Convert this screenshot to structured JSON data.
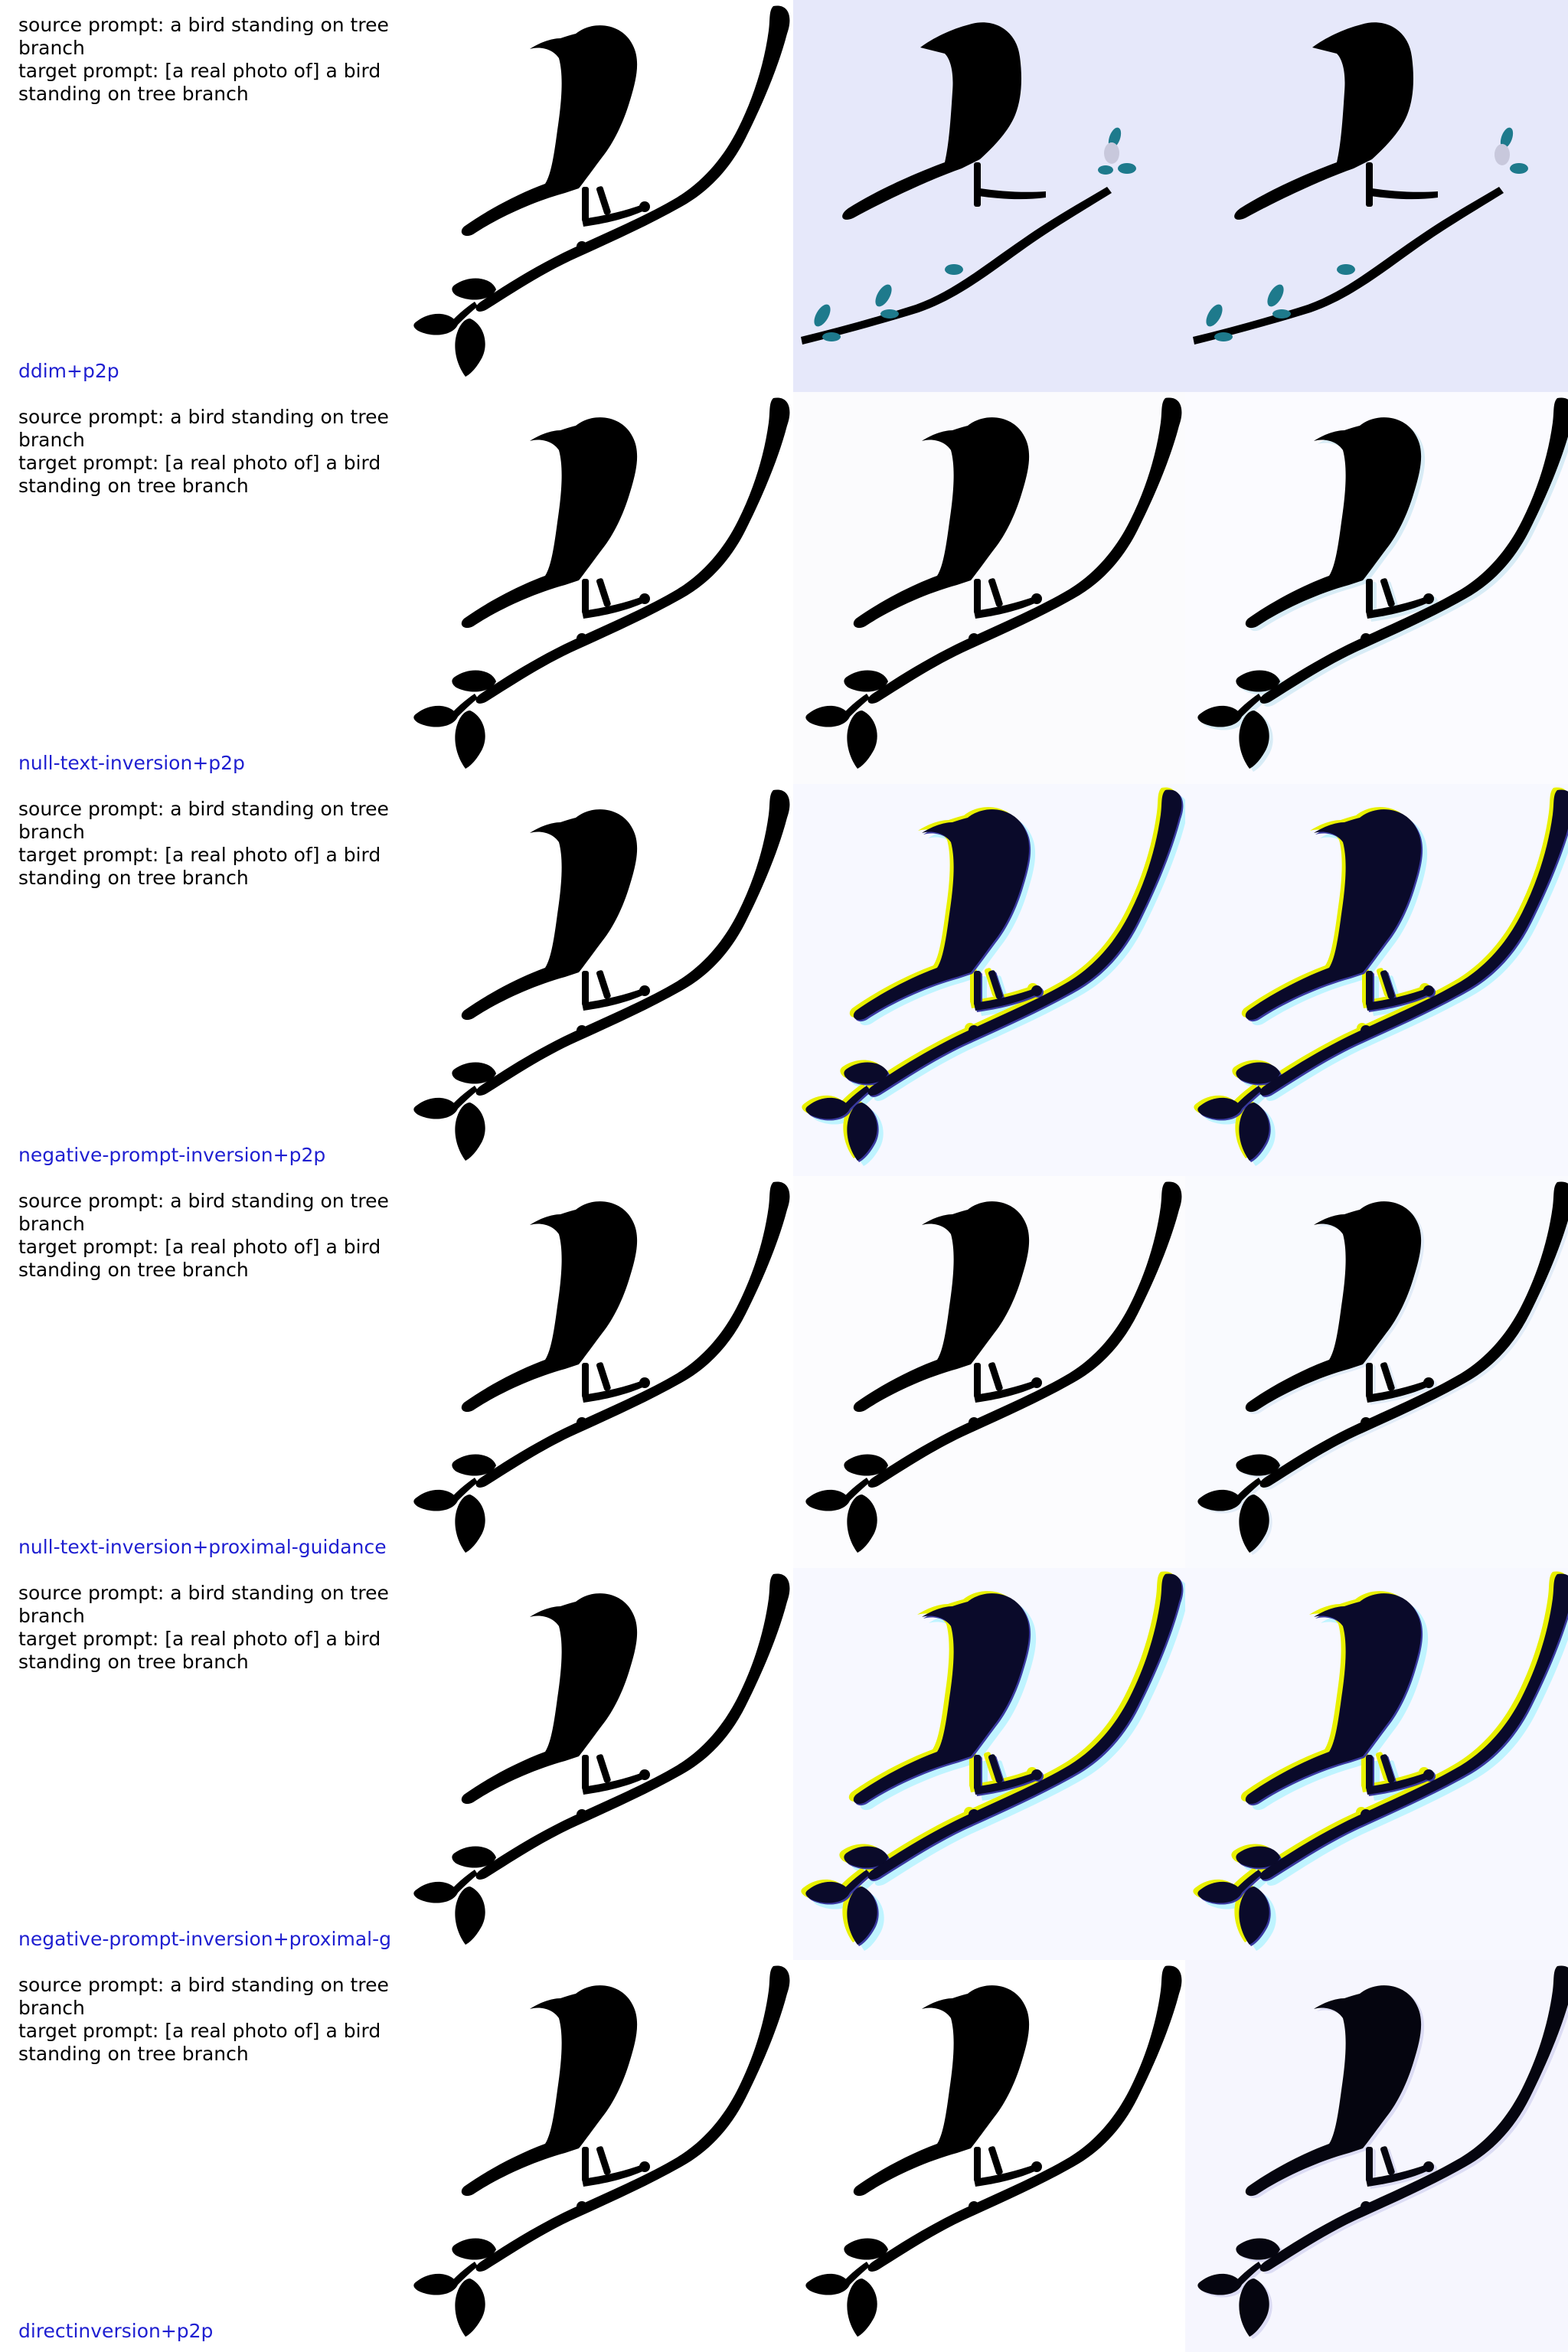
{
  "colors": {
    "method_label": "#1f1fd1",
    "silhouette": "#000000",
    "ddim_background": "#e6e8fa",
    "leaf_accent": "#1e7a8c",
    "artifact_yellow": "#e8f000",
    "artifact_cyan": "#bff4ff",
    "artifact_navy": "#0a0a2a"
  },
  "rows": [
    {
      "source_line": "source prompt: a bird standing on tree branch",
      "target_line": "target prompt: [a real photo of] a bird standing on tree branch",
      "method": "ddim+p2p",
      "panels": [
        "original-image",
        "reconstruction-image",
        "edited-image"
      ]
    },
    {
      "source_line": "source prompt: a bird standing on tree branch",
      "target_line": "target prompt: [a real photo of] a bird standing on tree branch",
      "method": "null-text-inversion+p2p",
      "panels": [
        "original-image",
        "reconstruction-image",
        "edited-image"
      ]
    },
    {
      "source_line": "source prompt: a bird standing on tree branch",
      "target_line": "target prompt: [a real photo of] a bird standing on tree branch",
      "method": "negative-prompt-inversion+p2p",
      "panels": [
        "original-image",
        "reconstruction-image",
        "edited-image"
      ]
    },
    {
      "source_line": "source prompt: a bird standing on tree branch",
      "target_line": "target prompt: [a real photo of] a bird standing on tree branch",
      "method": "null-text-inversion+proximal-guidance",
      "panels": [
        "original-image",
        "reconstruction-image",
        "edited-image"
      ]
    },
    {
      "source_line": "source prompt: a bird standing on tree branch",
      "target_line": "target prompt: [a real photo of] a bird standing on tree branch",
      "method": "negative-prompt-inversion+proximal-g",
      "panels": [
        "original-image",
        "reconstruction-image",
        "edited-image"
      ]
    },
    {
      "source_line": "source prompt: a bird standing on tree branch",
      "target_line": "target prompt: [a real photo of] a bird standing on tree branch",
      "method": "directinversion+p2p",
      "panels": [
        "original-image",
        "reconstruction-image",
        "edited-image"
      ]
    }
  ]
}
